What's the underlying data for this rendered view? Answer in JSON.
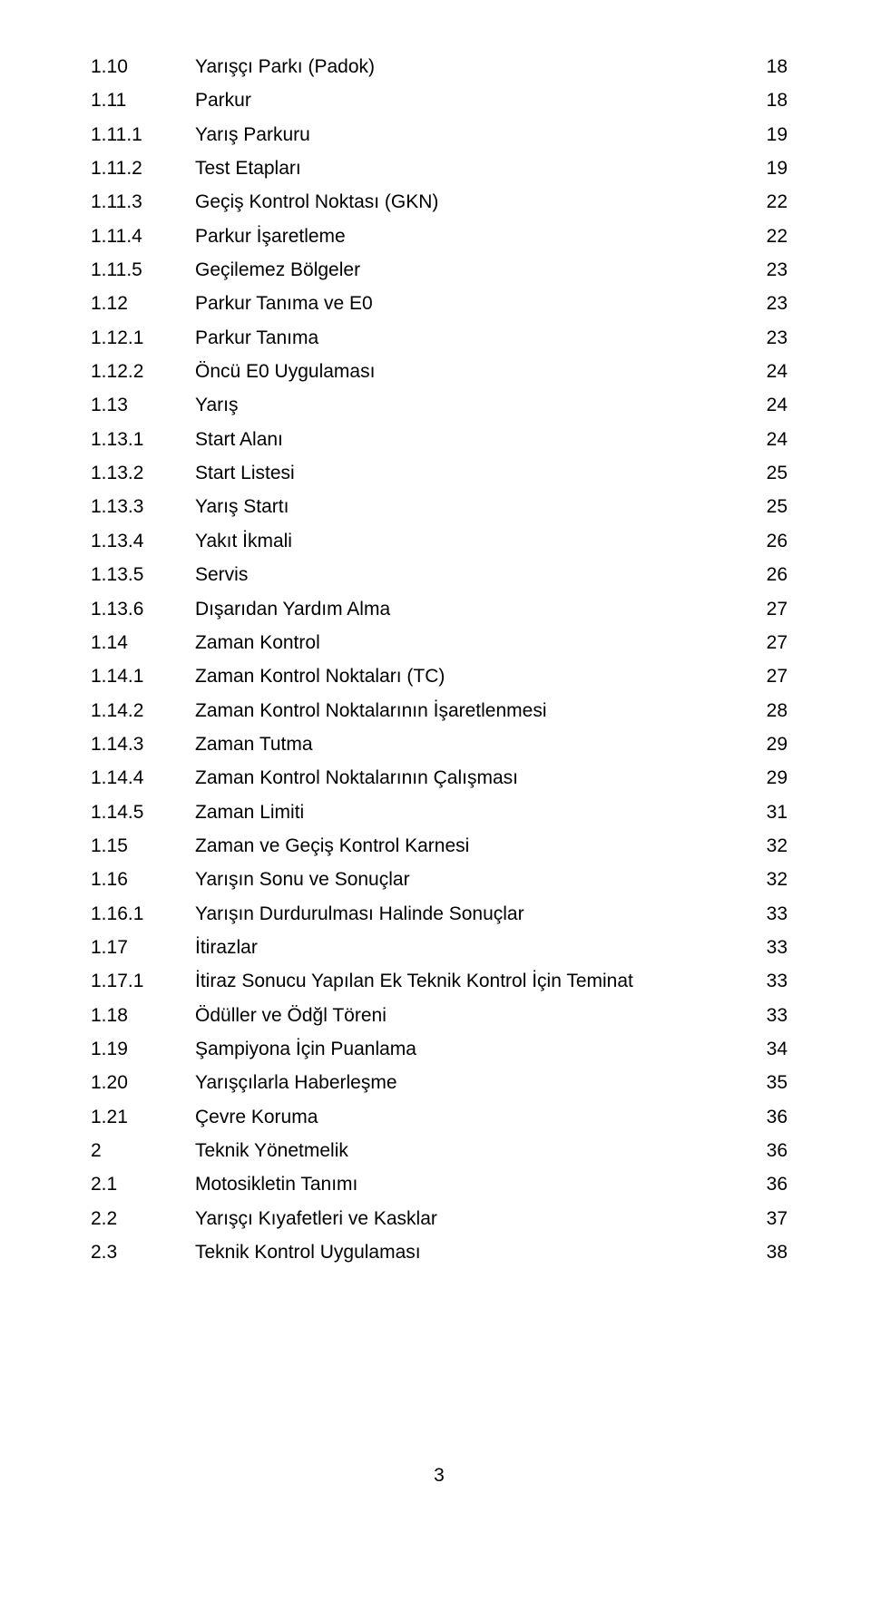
{
  "toc": [
    {
      "num": "1.10",
      "title": "Yarışçı Parkı (Padok)",
      "page": "18"
    },
    {
      "num": "1.11",
      "title": "Parkur",
      "page": "18"
    },
    {
      "num": "1.11.1",
      "title": "Yarış Parkuru",
      "page": "19"
    },
    {
      "num": "1.11.2",
      "title": "Test Etapları",
      "page": "19"
    },
    {
      "num": "1.11.3",
      "title": "Geçiş Kontrol Noktası (GKN)",
      "page": "22"
    },
    {
      "num": "1.11.4",
      "title": "Parkur İşaretleme",
      "page": "22"
    },
    {
      "num": "1.11.5",
      "title": "Geçilemez Bölgeler",
      "page": "23"
    },
    {
      "num": "1.12",
      "title": "Parkur Tanıma ve E0",
      "page": "23"
    },
    {
      "num": "1.12.1",
      "title": "Parkur Tanıma",
      "page": "23"
    },
    {
      "num": "1.12.2",
      "title": "Öncü E0 Uygulaması",
      "page": "24"
    },
    {
      "num": "1.13",
      "title": "Yarış",
      "page": "24"
    },
    {
      "num": "1.13.1",
      "title": "Start Alanı",
      "page": "24"
    },
    {
      "num": "1.13.2",
      "title": "Start Listesi",
      "page": "25"
    },
    {
      "num": "1.13.3",
      "title": "Yarış Startı",
      "page": "25"
    },
    {
      "num": "1.13.4",
      "title": "Yakıt İkmali",
      "page": "26"
    },
    {
      "num": "1.13.5",
      "title": "Servis",
      "page": "26"
    },
    {
      "num": "1.13.6",
      "title": "Dışarıdan Yardım Alma",
      "page": "27"
    },
    {
      "num": "1.14",
      "title": "Zaman Kontrol",
      "page": "27"
    },
    {
      "num": "1.14.1",
      "title": "Zaman Kontrol Noktaları (TC)",
      "page": "27"
    },
    {
      "num": "1.14.2",
      "title": "Zaman Kontrol Noktalarının İşaretlenmesi",
      "page": "28"
    },
    {
      "num": "1.14.3",
      "title": "Zaman Tutma",
      "page": "29"
    },
    {
      "num": "1.14.4",
      "title": "Zaman Kontrol Noktalarının Çalışması",
      "page": "29"
    },
    {
      "num": "1.14.5",
      "title": "Zaman Limiti",
      "page": "31"
    },
    {
      "num": "1.15",
      "title": "Zaman ve Geçiş Kontrol Karnesi",
      "page": "32"
    },
    {
      "num": "1.16",
      "title": "Yarışın Sonu ve Sonuçlar",
      "page": "32"
    },
    {
      "num": "1.16.1",
      "title": "Yarışın Durdurulması Halinde Sonuçlar",
      "page": "33"
    },
    {
      "num": "1.17",
      "title": "İtirazlar",
      "page": "33"
    },
    {
      "num": "1.17.1",
      "title": "İtiraz Sonucu Yapılan Ek Teknik Kontrol İçin Teminat",
      "page": "33"
    },
    {
      "num": "1.18",
      "title": "Ödüller ve Ödğl Töreni",
      "page": "33"
    },
    {
      "num": "1.19",
      "title": "Şampiyona İçin Puanlama",
      "page": "34"
    },
    {
      "num": "1.20",
      "title": "Yarışçılarla Haberleşme",
      "page": "35"
    },
    {
      "num": "1.21",
      "title": "Çevre Koruma",
      "page": "36"
    },
    {
      "num": "2",
      "title": "Teknik Yönetmelik",
      "page": "36"
    },
    {
      "num": "2.1",
      "title": "Motosikletin Tanımı",
      "page": "36"
    },
    {
      "num": "2.2",
      "title": "Yarışçı Kıyafetleri ve Kasklar",
      "page": "37"
    },
    {
      "num": "2.3",
      "title": "Teknik Kontrol Uygulaması",
      "page": "38"
    }
  ],
  "page_number": "3"
}
